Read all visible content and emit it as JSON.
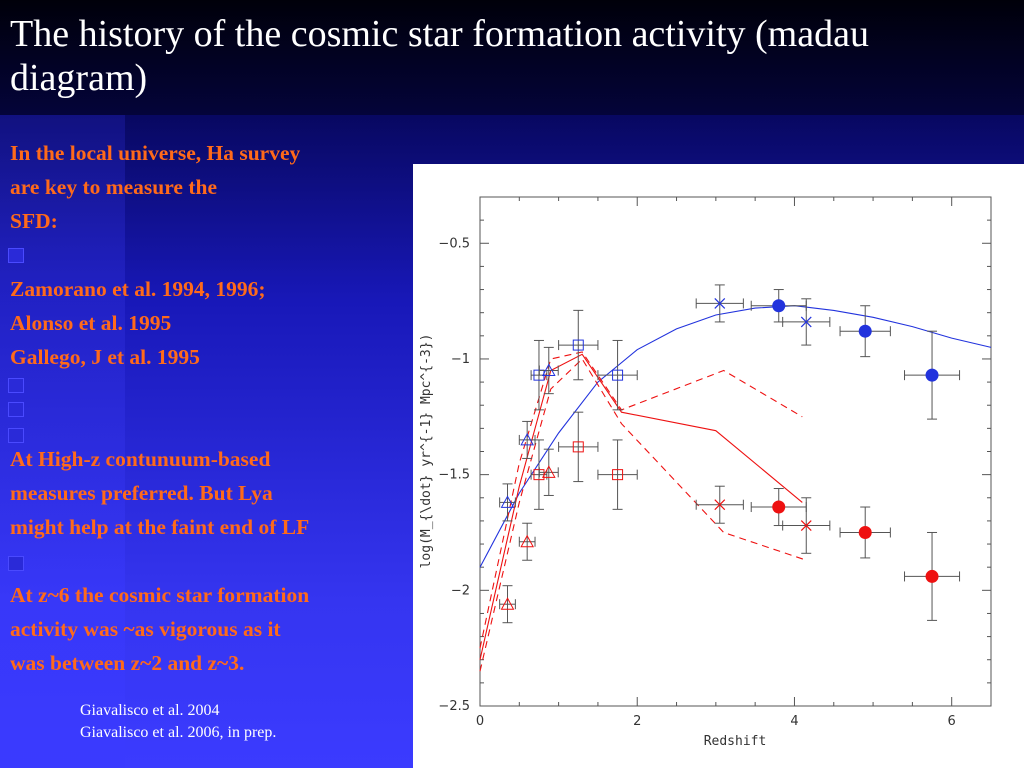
{
  "slide": {
    "title": "The history of the cosmic star formation activity (madau diagram)",
    "paragraphs": {
      "p1_l1": "In the local universe, Ha survey",
      "p1_l2": "are key to measure the",
      "p1_l3": "SFD:",
      "p2_l1": "Zamorano et al. 1994, 1996;",
      "p2_l2": "Alonso et al. 1995",
      "p2_l3": "Gallego, J et al. 1995",
      "p3_l1": "At High-z contunuum-based",
      "p3_l2": "measures preferred. But Lya",
      "p3_l3": "might help at the faint end of LF",
      "p4_l1": "At z~6 the cosmic star formation",
      "p4_l2": "activity was ~as vigorous as it",
      "p4_l3": "was between z~2 and z~3."
    },
    "citations": {
      "c1": "Giavalisco et al. 2004",
      "c2": "Giavalisco et al. 2006, in prep."
    },
    "colors": {
      "text_accent": "#ff6a1a",
      "blue_series": "#2233dd",
      "red_series": "#ee1111",
      "background": "#2b2bd8"
    }
  },
  "chart_data": {
    "type": "scatter",
    "xlabel": "Redshift",
    "ylabel": "log(M_{\\dot} yr^{-1} Mpc^{-3})",
    "xlim": [
      0,
      6.5
    ],
    "ylim": [
      -2.5,
      -0.3
    ],
    "xticks": [
      0,
      2,
      4,
      6
    ],
    "yticks": [
      -0.5,
      -1,
      -1.5,
      -2,
      -2.5
    ],
    "ytick_labels": [
      "−0.5",
      "−1",
      "−1.5",
      "−2",
      "−2.5"
    ],
    "series": [
      {
        "color": "#2233dd",
        "marker": "circle-filled",
        "points": [
          {
            "x": 3.8,
            "y": -0.77,
            "xerr": 0.35,
            "yerr": 0.07
          },
          {
            "x": 4.9,
            "y": -0.88,
            "xerr": 0.32,
            "yerr": 0.11
          },
          {
            "x": 5.75,
            "y": -1.07,
            "xerr": 0.35,
            "yerr": 0.19
          }
        ]
      },
      {
        "color": "#ee1111",
        "marker": "circle-filled",
        "points": [
          {
            "x": 3.8,
            "y": -1.64,
            "xerr": 0.35,
            "yerr": 0.08
          },
          {
            "x": 4.9,
            "y": -1.75,
            "xerr": 0.32,
            "yerr": 0.11
          },
          {
            "x": 5.75,
            "y": -1.94,
            "xerr": 0.35,
            "yerr": 0.19
          }
        ]
      },
      {
        "color": "#2233dd",
        "marker": "cross",
        "points": [
          {
            "x": 3.05,
            "y": -0.76,
            "xerr": 0.3,
            "yerr": 0.08
          },
          {
            "x": 4.15,
            "y": -0.84,
            "xerr": 0.3,
            "yerr": 0.1
          }
        ]
      },
      {
        "color": "#ee1111",
        "marker": "cross",
        "points": [
          {
            "x": 3.05,
            "y": -1.63,
            "xerr": 0.3,
            "yerr": 0.08
          },
          {
            "x": 4.15,
            "y": -1.72,
            "xerr": 0.3,
            "yerr": 0.12
          }
        ]
      },
      {
        "color": "#2233dd",
        "marker": "square-open",
        "points": [
          {
            "x": 0.75,
            "y": -1.07,
            "xerr": 0.1,
            "yerr": 0.15
          },
          {
            "x": 1.25,
            "y": -0.94,
            "xerr": 0.25,
            "yerr": 0.15
          },
          {
            "x": 1.75,
            "y": -1.07,
            "xerr": 0.25,
            "yerr": 0.15
          }
        ]
      },
      {
        "color": "#ee1111",
        "marker": "square-open",
        "points": [
          {
            "x": 0.75,
            "y": -1.5,
            "xerr": 0.1,
            "yerr": 0.15
          },
          {
            "x": 1.25,
            "y": -1.38,
            "xerr": 0.25,
            "yerr": 0.15
          },
          {
            "x": 1.75,
            "y": -1.5,
            "xerr": 0.25,
            "yerr": 0.15
          }
        ]
      },
      {
        "color": "#2233dd",
        "marker": "triangle-open",
        "points": [
          {
            "x": 0.35,
            "y": -1.62,
            "xerr": 0.1,
            "yerr": 0.08
          },
          {
            "x": 0.6,
            "y": -1.35,
            "xerr": 0.1,
            "yerr": 0.08
          },
          {
            "x": 0.875,
            "y": -1.05,
            "xerr": 0.12,
            "yerr": 0.1
          }
        ]
      },
      {
        "color": "#ee1111",
        "marker": "triangle-open",
        "points": [
          {
            "x": 0.35,
            "y": -2.06,
            "xerr": 0.1,
            "yerr": 0.08
          },
          {
            "x": 0.6,
            "y": -1.79,
            "xerr": 0.1,
            "yerr": 0.08
          },
          {
            "x": 0.875,
            "y": -1.49,
            "xerr": 0.12,
            "yerr": 0.1
          }
        ]
      }
    ],
    "curves": [
      {
        "color": "#2233dd",
        "style": "solid",
        "points": [
          [
            0,
            -1.9
          ],
          [
            0.5,
            -1.58
          ],
          [
            1,
            -1.32
          ],
          [
            1.5,
            -1.1
          ],
          [
            2,
            -0.96
          ],
          [
            2.5,
            -0.87
          ],
          [
            3,
            -0.81
          ],
          [
            3.5,
            -0.78
          ],
          [
            4,
            -0.77
          ],
          [
            4.5,
            -0.79
          ],
          [
            5,
            -0.82
          ],
          [
            5.5,
            -0.86
          ],
          [
            6,
            -0.91
          ],
          [
            6.5,
            -0.95
          ]
        ]
      },
      {
        "color": "#ee1111",
        "style": "solid",
        "points": [
          [
            0,
            -2.3
          ],
          [
            0.5,
            -1.55
          ],
          [
            0.9,
            -1.05
          ],
          [
            1.3,
            -0.98
          ],
          [
            1.8,
            -1.23
          ],
          [
            3,
            -1.31
          ],
          [
            4.1,
            -1.62
          ]
        ]
      },
      {
        "color": "#ee1111",
        "style": "dashed",
        "points": [
          [
            0,
            -2.25
          ],
          [
            0.5,
            -1.45
          ],
          [
            0.9,
            -1.0
          ],
          [
            1.3,
            -0.97
          ],
          [
            1.8,
            -1.22
          ],
          [
            3.1,
            -1.05
          ],
          [
            4.1,
            -1.25
          ]
        ]
      },
      {
        "color": "#ee1111",
        "style": "dashed",
        "points": [
          [
            0,
            -2.35
          ],
          [
            0.5,
            -1.62
          ],
          [
            0.9,
            -1.13
          ],
          [
            1.3,
            -1.0
          ],
          [
            1.8,
            -1.28
          ],
          [
            3.1,
            -1.75
          ],
          [
            4.15,
            -1.87
          ]
        ]
      }
    ]
  }
}
